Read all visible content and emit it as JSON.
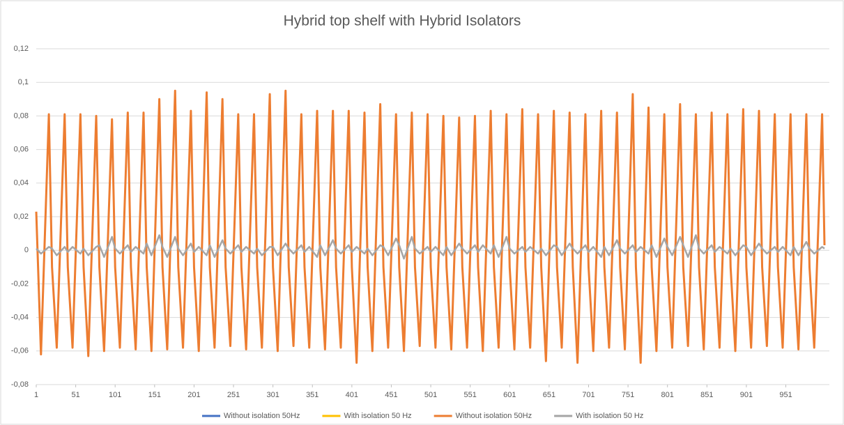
{
  "chart_data": {
    "type": "line",
    "title": "Hybrid top shelf with Hybrid Isolators",
    "x": [
      1,
      7,
      17,
      21,
      27,
      37,
      41,
      47,
      57,
      61,
      67,
      77,
      81,
      87,
      97,
      101,
      107,
      117,
      121,
      127,
      137,
      141,
      147,
      157,
      161,
      167,
      177,
      181,
      187,
      197,
      201,
      207,
      217,
      221,
      227,
      237,
      241,
      247,
      257,
      261,
      267,
      277,
      281,
      287,
      297,
      301,
      307,
      317,
      321,
      327,
      337,
      341,
      347,
      357,
      361,
      367,
      377,
      381,
      387,
      397,
      401,
      407,
      417,
      421,
      427,
      437,
      441,
      447,
      457,
      461,
      467,
      477,
      481,
      487,
      497,
      501,
      507,
      517,
      521,
      527,
      537,
      541,
      547,
      557,
      561,
      567,
      577,
      581,
      587,
      597,
      601,
      607,
      617,
      621,
      627,
      637,
      641,
      647,
      657,
      661,
      667,
      677,
      681,
      687,
      697,
      701,
      707,
      717,
      721,
      727,
      737,
      741,
      747,
      757,
      761,
      767,
      777,
      781,
      787,
      797,
      801,
      807,
      817,
      821,
      827,
      837,
      841,
      847,
      857,
      861,
      867,
      877,
      881,
      887,
      897,
      901,
      907,
      917,
      921,
      927,
      937,
      941,
      947,
      957,
      961,
      967,
      977,
      981,
      987,
      997,
      1000
    ],
    "series": [
      {
        "name": "Without isolation 50Hz",
        "color": "#4472c4"
      },
      {
        "name": "With isolation 50 Hz",
        "color": "#ffc000"
      },
      {
        "name": "Without isolation 50Hz",
        "color": "#ed7d31",
        "values": [
          0.023,
          -0.062,
          0.081,
          -0.01,
          -0.058,
          0.081,
          -0.01,
          -0.058,
          0.081,
          -0.01,
          -0.063,
          0.08,
          -0.01,
          -0.06,
          0.078,
          -0.01,
          -0.058,
          0.082,
          -0.01,
          -0.059,
          0.082,
          -0.01,
          -0.06,
          0.09,
          -0.01,
          -0.059,
          0.095,
          -0.01,
          -0.058,
          0.083,
          -0.01,
          -0.06,
          0.094,
          -0.01,
          -0.058,
          0.09,
          -0.01,
          -0.057,
          0.081,
          -0.01,
          -0.059,
          0.081,
          -0.01,
          -0.058,
          0.093,
          -0.01,
          -0.06,
          0.095,
          -0.01,
          -0.057,
          0.081,
          -0.01,
          -0.058,
          0.083,
          -0.01,
          -0.059,
          0.083,
          -0.01,
          -0.058,
          0.083,
          -0.01,
          -0.067,
          0.082,
          -0.01,
          -0.06,
          0.087,
          -0.01,
          -0.058,
          0.081,
          -0.01,
          -0.06,
          0.082,
          -0.01,
          -0.057,
          0.081,
          -0.01,
          -0.058,
          0.08,
          -0.01,
          -0.059,
          0.079,
          -0.01,
          -0.058,
          0.08,
          -0.01,
          -0.06,
          0.083,
          -0.01,
          -0.058,
          0.081,
          -0.01,
          -0.059,
          0.084,
          -0.01,
          -0.058,
          0.081,
          -0.01,
          -0.066,
          0.083,
          -0.01,
          -0.058,
          0.082,
          -0.01,
          -0.067,
          0.081,
          -0.01,
          -0.06,
          0.083,
          -0.01,
          -0.058,
          0.082,
          -0.01,
          -0.059,
          0.093,
          -0.01,
          -0.067,
          0.085,
          -0.01,
          -0.06,
          0.081,
          -0.01,
          -0.058,
          0.087,
          -0.01,
          -0.057,
          0.081,
          -0.01,
          -0.059,
          0.082,
          -0.01,
          -0.058,
          0.081,
          -0.01,
          -0.06,
          0.084,
          -0.01,
          -0.058,
          0.083,
          -0.01,
          -0.057,
          0.081,
          -0.01,
          -0.058,
          0.081,
          -0.01,
          -0.059,
          0.081,
          -0.01,
          -0.058,
          0.081,
          0.003
        ]
      },
      {
        "name": "With isolation 50 Hz",
        "color": "#a5a5a5",
        "values": [
          0.001,
          -0.002,
          0.002,
          0.001,
          -0.003,
          0.002,
          -0.001,
          0.002,
          -0.002,
          0.001,
          -0.003,
          0.002,
          0.003,
          -0.004,
          0.008,
          0.001,
          -0.002,
          0.003,
          -0.001,
          0.002,
          -0.002,
          0.004,
          -0.003,
          0.009,
          0.002,
          -0.004,
          0.008,
          0.001,
          -0.003,
          0.004,
          -0.001,
          0.002,
          -0.003,
          0.003,
          -0.004,
          0.006,
          0.001,
          -0.002,
          0.003,
          -0.001,
          0.002,
          -0.002,
          0.001,
          -0.003,
          0.002,
          0.002,
          -0.003,
          0.004,
          0.001,
          -0.002,
          0.003,
          -0.001,
          0.002,
          -0.004,
          0.003,
          -0.003,
          0.006,
          0.001,
          -0.002,
          0.003,
          -0.001,
          0.002,
          -0.002,
          0.001,
          -0.003,
          0.003,
          0.002,
          -0.003,
          0.007,
          0.003,
          -0.005,
          0.008,
          0.001,
          -0.002,
          0.002,
          -0.001,
          0.002,
          -0.003,
          0.002,
          -0.003,
          0.004,
          0.001,
          -0.002,
          0.003,
          -0.001,
          0.003,
          -0.002,
          0.003,
          -0.004,
          0.008,
          0.001,
          -0.002,
          0.002,
          -0.001,
          0.002,
          -0.002,
          0.001,
          -0.003,
          0.003,
          0.002,
          -0.003,
          0.004,
          0.001,
          -0.002,
          0.003,
          -0.001,
          0.002,
          -0.004,
          0.002,
          -0.003,
          0.006,
          0.001,
          -0.002,
          0.003,
          -0.001,
          0.002,
          -0.002,
          0.003,
          -0.004,
          0.007,
          0.002,
          -0.003,
          0.008,
          0.003,
          -0.004,
          0.009,
          0.001,
          -0.002,
          0.003,
          -0.001,
          0.002,
          -0.002,
          0.001,
          -0.003,
          0.003,
          0.002,
          -0.003,
          0.004,
          0.001,
          -0.002,
          0.002,
          -0.001,
          0.002,
          -0.003,
          0.002,
          -0.003,
          0.005,
          0.001,
          -0.002,
          0.002,
          0.001
        ]
      }
    ],
    "xlim": [
      1,
      1000
    ],
    "xticks": [
      1,
      51,
      101,
      151,
      201,
      251,
      301,
      351,
      401,
      451,
      501,
      551,
      601,
      651,
      701,
      751,
      801,
      851,
      901,
      951
    ],
    "ylim": [
      -0.08,
      0.12
    ],
    "yticks": [
      {
        "value": -0.08,
        "label": "-0,08"
      },
      {
        "value": -0.06,
        "label": "-0,06"
      },
      {
        "value": -0.04,
        "label": "-0,04"
      },
      {
        "value": -0.02,
        "label": "-0,02"
      },
      0,
      {
        "value": 0.02,
        "label": "0,02"
      },
      {
        "value": 0.04,
        "label": "0,04"
      },
      {
        "value": 0.06,
        "label": "0,06"
      },
      {
        "value": 0.08,
        "label": "0,08"
      },
      {
        "value": 0.1,
        "label": "0,1"
      },
      {
        "value": 0.12,
        "label": "0,12"
      }
    ],
    "grid": true,
    "legend": "bottom"
  }
}
